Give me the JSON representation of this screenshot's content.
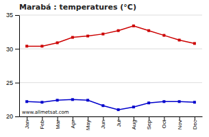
{
  "chart_data": {
    "type": "line",
    "title": "Marabá : temperatures (°C)",
    "categories": [
      "Jan",
      "Feb",
      "Mar",
      "Apr",
      "May",
      "Jun",
      "Jul",
      "Aug",
      "Sep",
      "Oct",
      "Nov",
      "Dec"
    ],
    "series": [
      {
        "color": "#cc0000",
        "marker": "square",
        "values": [
          30.4,
          30.4,
          30.9,
          31.7,
          31.9,
          32.2,
          32.7,
          33.4,
          32.7,
          32.0,
          31.3,
          30.8
        ]
      },
      {
        "color": "#0000cc",
        "marker": "square",
        "values": [
          22.2,
          22.1,
          22.4,
          22.5,
          22.4,
          21.6,
          21.0,
          21.4,
          22.0,
          22.2,
          22.2,
          22.1
        ]
      }
    ],
    "ylim": [
      20,
      35
    ],
    "yticks": [
      20,
      25,
      30,
      35
    ],
    "grid": true,
    "annotations": [
      "www.allmetsat.com"
    ]
  }
}
